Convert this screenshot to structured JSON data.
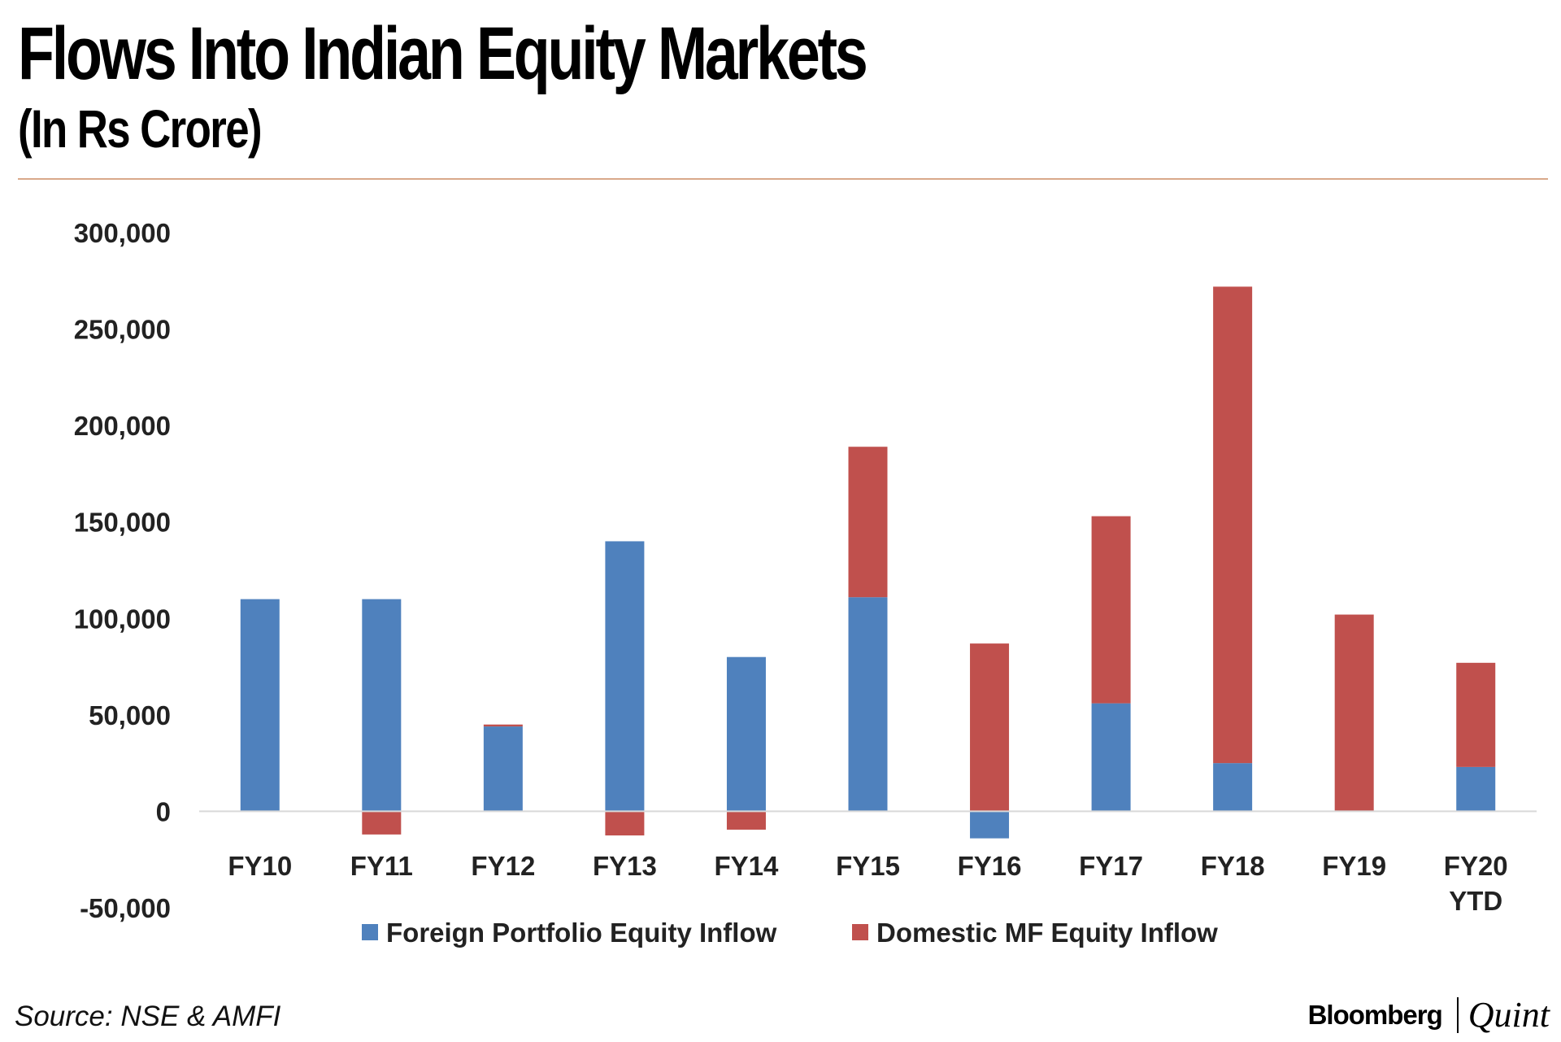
{
  "header": {
    "title": "Flows Into Indian Equity Markets",
    "subtitle": "(In Rs Crore)"
  },
  "footer": {
    "source": "Source: NSE & AMFI",
    "brand_primary": "Bloomberg",
    "brand_secondary": "Quint"
  },
  "colors": {
    "foreign": "#4f81bd",
    "domestic": "#c0504d",
    "axis_text": "#222222",
    "zero_line": "#d9d9d9"
  },
  "chart_data": {
    "type": "bar",
    "stacked": true,
    "title": "Flows Into Indian Equity Markets",
    "subtitle": "(In Rs Crore)",
    "xlabel": "",
    "ylabel": "",
    "ylim": [
      -50000,
      300000
    ],
    "yticks": [
      -50000,
      0,
      50000,
      100000,
      150000,
      200000,
      250000,
      300000
    ],
    "ytick_labels": [
      "-50,000",
      "0",
      "50,000",
      "100,000",
      "150,000",
      "200,000",
      "250,000",
      "300,000"
    ],
    "grid": false,
    "legend_position": "bottom",
    "categories": [
      [
        "FY10"
      ],
      [
        "FY11"
      ],
      [
        "FY12"
      ],
      [
        "FY13"
      ],
      [
        "FY14"
      ],
      [
        "FY15"
      ],
      [
        "FY16"
      ],
      [
        "FY17"
      ],
      [
        "FY18"
      ],
      [
        "FY19"
      ],
      [
        "FY20",
        "YTD"
      ]
    ],
    "series": [
      {
        "name": "Foreign Portfolio Equity Inflow",
        "color": "#4f81bd",
        "values": [
          110000,
          110000,
          44000,
          140000,
          80000,
          111000,
          -14000,
          56000,
          25000,
          0,
          23000
        ]
      },
      {
        "name": "Domestic MF Equity Inflow",
        "color": "#c0504d",
        "values": [
          0,
          -12000,
          1000,
          -12500,
          -9500,
          78000,
          87000,
          97000,
          247000,
          102000,
          54000
        ]
      }
    ]
  }
}
